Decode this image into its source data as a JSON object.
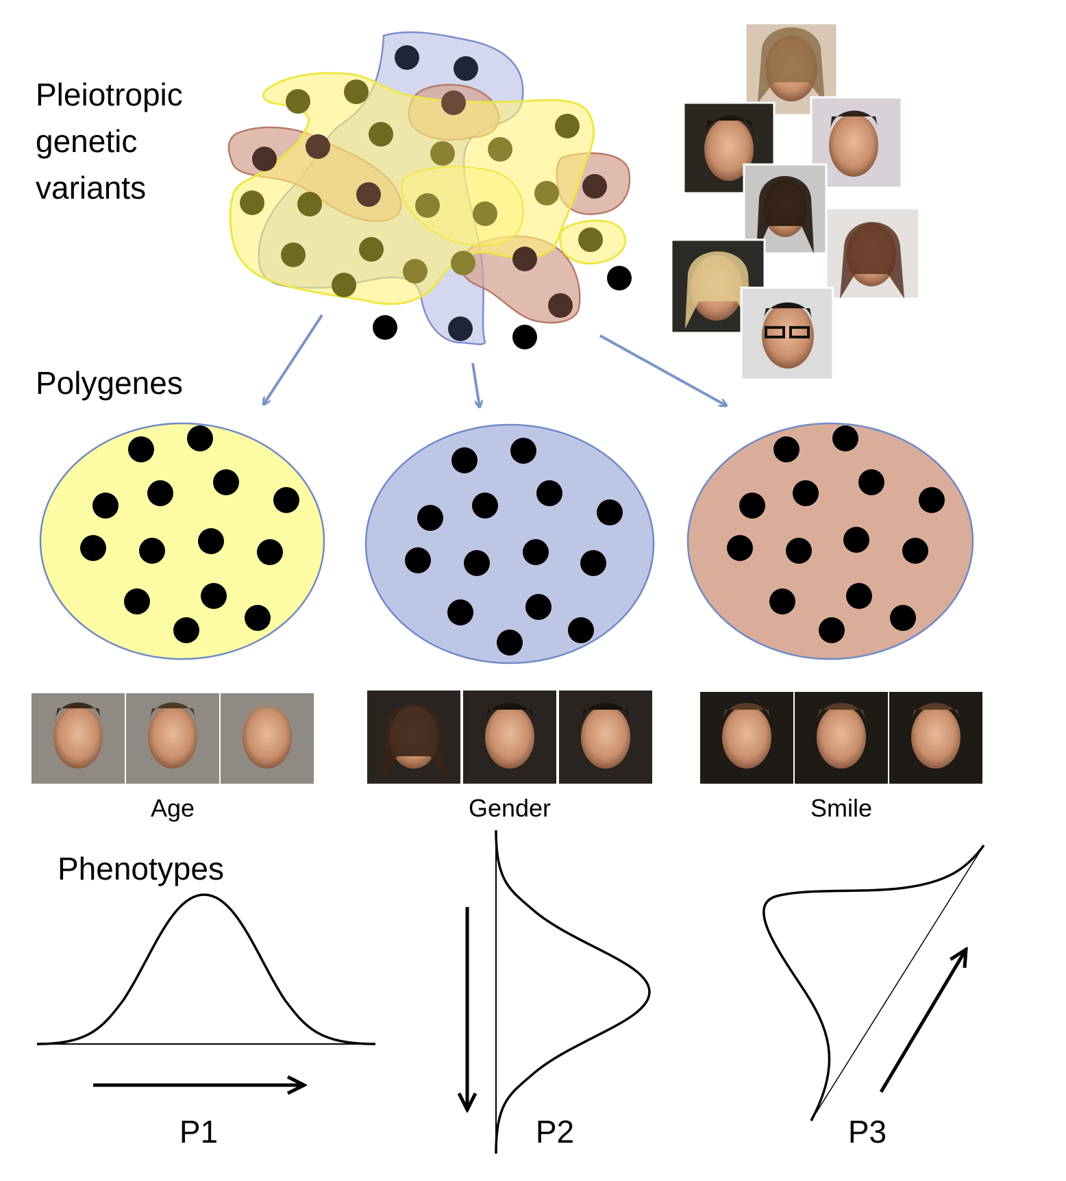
{
  "labels": {
    "pleiotropic": [
      "Pleiotropic",
      "genetic",
      "variants"
    ],
    "polygenes": "Polygenes",
    "phenotypes": "Phenotypes"
  },
  "traits": [
    {
      "caption": "Age",
      "color": "#fdfca4"
    },
    {
      "caption": "Gender",
      "color": "#bec6e5"
    },
    {
      "caption": "Smile",
      "color": "#d9ad9a"
    }
  ],
  "phenotype_labels": [
    "P1",
    "P2",
    "P3"
  ],
  "colors": {
    "yellow_fill": "#fff27a",
    "yellow_stroke": "#ece845",
    "blue_fill": "#c5cbea",
    "blue_stroke": "#7f8ccc",
    "brown_fill": "#d6a595",
    "brown_stroke": "#b87b69",
    "circle_stroke": "#6f8ac4",
    "arrow_blue": "#7b95c7",
    "dot": "#000000"
  },
  "icons": [
    "face-photo-icon",
    "arrow-icon"
  ]
}
